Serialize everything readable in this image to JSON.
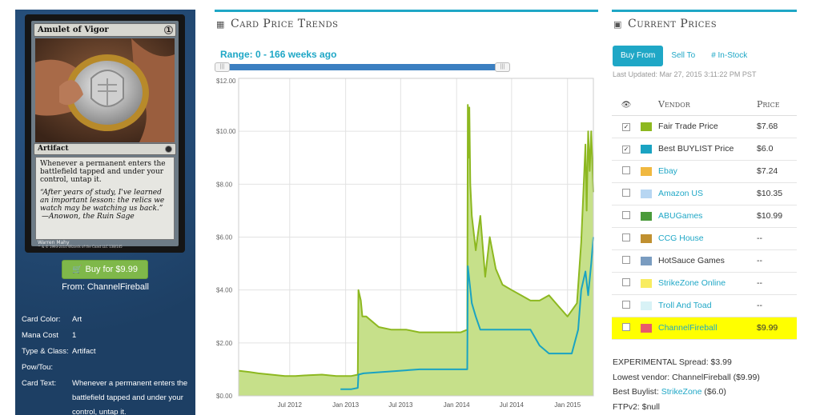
{
  "card": {
    "name": "Amulet of Vigor",
    "mana_cost_symbol": "1",
    "type_line": "Artifact",
    "rules_text": "Whenever a permanent enters the battlefield tapped and under your control, untap it.",
    "flavor_text": "“After years of study, I've learned an important lesson: the relics we watch may be watching us back.”",
    "flavor_source": "—Anowon, the Ruin Sage",
    "artist": "Warren Mahy",
    "copyright": "™ & © 1993-2010 Wizards of the Coast LLC 138/145"
  },
  "buy_button": {
    "label": "Buy for $9.99",
    "icon": "cart-icon"
  },
  "from_line": "From: ChannelFireball",
  "details": [
    {
      "key": "Card Color:",
      "value": "Art"
    },
    {
      "key": "Mana Cost",
      "value": "1"
    },
    {
      "key": "Type & Class:",
      "value": "Artifact"
    },
    {
      "key": "Pow/Tou:",
      "value": ""
    },
    {
      "key": "Card Text:",
      "value": "Whenever a permanent enters the battlefield tapped and under your control, untap it."
    }
  ],
  "trends": {
    "header": "Card Price Trends",
    "header_icon": "calendar-icon",
    "range_label": "Range: 0 - 166 weeks ago",
    "range_fraction": [
      0.0,
      1.0
    ]
  },
  "chart_data": {
    "type": "area",
    "x_tick_labels": [
      "Jul 2012",
      "Jan 2013",
      "Jul 2013",
      "Jan 2014",
      "Jul 2014",
      "Jan 2015"
    ],
    "y_tick_labels": [
      "$0.00",
      "$2.00",
      "$4.00",
      "$6.00",
      "$8.00",
      "$10.00",
      "$12.00"
    ],
    "ylim": [
      0,
      12
    ],
    "xlim": [
      "2012-01-15",
      "2015-03-27"
    ],
    "grid": true,
    "series": [
      {
        "color": "#8db820",
        "fill": "#c6e08a",
        "x": [
          "2012-01-15",
          "2012-02-20",
          "2012-03-20",
          "2012-05-01",
          "2012-06-15",
          "2012-07-20",
          "2012-09-01",
          "2012-10-15",
          "2012-12-01",
          "2013-01-20",
          "2013-02-10",
          "2013-02-12",
          "2013-02-20",
          "2013-02-25",
          "2013-03-10",
          "2013-04-20",
          "2013-06-01",
          "2013-07-20",
          "2013-09-01",
          "2013-10-15",
          "2013-12-01",
          "2014-01-15",
          "2014-02-05",
          "2014-02-07",
          "2014-02-10",
          "2014-02-12",
          "2014-02-15",
          "2014-02-20",
          "2014-03-05",
          "2014-03-20",
          "2014-04-05",
          "2014-04-20",
          "2014-05-10",
          "2014-06-01",
          "2014-07-01",
          "2014-08-01",
          "2014-09-01",
          "2014-10-01",
          "2014-11-01",
          "2014-12-01",
          "2015-01-01",
          "2015-02-01",
          "2015-02-15",
          "2015-03-01",
          "2015-03-05",
          "2015-03-10",
          "2015-03-15",
          "2015-03-20",
          "2015-03-27"
        ],
        "values": [
          0.95,
          0.9,
          0.85,
          0.8,
          0.75,
          0.75,
          0.78,
          0.8,
          0.75,
          0.75,
          0.8,
          4.0,
          3.6,
          3.0,
          3.0,
          2.6,
          2.5,
          2.5,
          2.4,
          2.4,
          2.4,
          2.4,
          2.5,
          11.0,
          9.0,
          10.9,
          8.0,
          6.8,
          5.5,
          6.8,
          4.5,
          6.0,
          4.8,
          4.2,
          4.0,
          3.8,
          3.6,
          3.6,
          3.8,
          3.4,
          3.0,
          3.5,
          5.8,
          9.5,
          7.0,
          10.0,
          8.5,
          10.0,
          7.7
        ]
      },
      {
        "color": "#1aa3c2",
        "x": [
          "2012-12-15",
          "2013-01-20",
          "2013-02-10",
          "2013-02-12",
          "2013-03-01",
          "2013-05-01",
          "2013-07-01",
          "2013-09-01",
          "2013-11-01",
          "2014-01-01",
          "2014-02-05",
          "2014-02-07",
          "2014-02-20",
          "2014-03-05",
          "2014-03-20",
          "2014-05-01",
          "2014-07-01",
          "2014-09-01",
          "2014-10-01",
          "2014-11-01",
          "2015-01-15",
          "2015-02-05",
          "2015-02-15",
          "2015-03-01",
          "2015-03-10",
          "2015-03-20",
          "2015-03-27"
        ],
        "values": [
          0.25,
          0.25,
          0.3,
          0.8,
          0.85,
          0.9,
          0.95,
          1.0,
          1.0,
          1.0,
          1.0,
          4.9,
          3.5,
          3.0,
          2.5,
          2.5,
          2.5,
          2.5,
          1.9,
          1.6,
          1.6,
          2.5,
          4.0,
          4.7,
          3.8,
          5.0,
          6.0
        ]
      }
    ]
  },
  "prices": {
    "header": "Current Prices",
    "header_icon": "money-icon",
    "tabs": [
      {
        "label": "Buy From",
        "active": true
      },
      {
        "label": "Sell To",
        "active": false
      },
      {
        "label": "# In-Stock",
        "active": false
      }
    ],
    "last_updated": "Last Updated: Mar 27, 2015 3:11:22 PM PST",
    "columns": {
      "eye_icon": "eye-icon",
      "vendor": "Vendor",
      "price": "Price"
    },
    "vendors": [
      {
        "name": "Fair Trade Price",
        "price": "$7.68",
        "color": "#8db820",
        "checked": true,
        "link": false,
        "highlight": false
      },
      {
        "name": "Best BUYLIST Price",
        "price": "$6.0",
        "color": "#1aa3c2",
        "checked": true,
        "link": false,
        "highlight": false
      },
      {
        "name": "Ebay",
        "price": "$7.24",
        "color": "#f0b840",
        "checked": false,
        "link": true,
        "highlight": false
      },
      {
        "name": "Amazon US",
        "price": "$10.35",
        "color": "#b7d6f2",
        "checked": false,
        "link": true,
        "highlight": false
      },
      {
        "name": "ABUGames",
        "price": "$10.99",
        "color": "#4a9a3a",
        "checked": false,
        "link": true,
        "highlight": false
      },
      {
        "name": "CCG House",
        "price": "--",
        "color": "#c09030",
        "checked": false,
        "link": true,
        "highlight": false
      },
      {
        "name": "HotSauce Games",
        "price": "--",
        "color": "#7a9cc0",
        "checked": false,
        "link": false,
        "highlight": false
      },
      {
        "name": "StrikeZone Online",
        "price": "--",
        "color": "#f8ec60",
        "checked": false,
        "link": true,
        "highlight": false
      },
      {
        "name": "Troll And Toad",
        "price": "--",
        "color": "#d8f2f6",
        "checked": false,
        "link": true,
        "highlight": false
      },
      {
        "name": "ChannelFireball",
        "price": "$9.99",
        "color": "#e85a6a",
        "checked": false,
        "link": true,
        "highlight": true
      }
    ]
  },
  "summary": {
    "spread": "EXPERIMENTAL Spread: $3.99",
    "lowest": "Lowest vendor: ChannelFireball ($9.99)",
    "best_buylist_label": "Best Buylist: ",
    "best_buylist_link": "StrikeZone",
    "best_buylist_value": " ($6.0)",
    "ftpv2": "FTPv2: $null"
  }
}
